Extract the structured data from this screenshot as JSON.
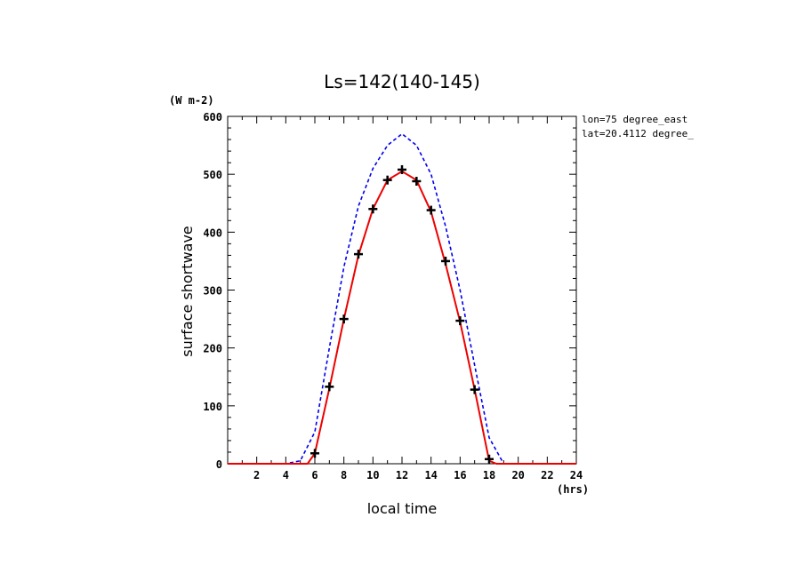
{
  "chart_data": {
    "type": "line",
    "title": "Ls=142(140-145)",
    "ylabel": "surface shortwave",
    "yunit": "(W m-2)",
    "xlabel": "local time",
    "xunit": "(hrs)",
    "annotations": [
      "lon=75 degree_east",
      "lat=20.4112 degree_"
    ],
    "xlim": [
      0,
      24
    ],
    "ylim": [
      0,
      600
    ],
    "xticks": [
      2,
      4,
      6,
      8,
      10,
      12,
      14,
      16,
      18,
      20,
      22,
      24
    ],
    "yticks": [
      0,
      100,
      200,
      300,
      400,
      500,
      600
    ],
    "grid": false,
    "series": [
      {
        "style": "dashed",
        "color": "#0000ee",
        "x": [
          0,
          1,
          2,
          3,
          4,
          5,
          6,
          7,
          8,
          9,
          10,
          11,
          12,
          13,
          14,
          15,
          16,
          17,
          18,
          19,
          20,
          21,
          22,
          23,
          24
        ],
        "y": [
          0,
          0,
          0,
          0,
          0,
          5,
          55,
          200,
          340,
          445,
          510,
          550,
          570,
          550,
          500,
          410,
          300,
          170,
          45,
          0,
          0,
          0,
          0,
          0,
          0
        ]
      },
      {
        "style": "solid",
        "color": "#ee0000",
        "x": [
          0,
          1,
          2,
          3,
          4,
          5,
          5.5,
          6,
          7,
          8,
          9,
          10,
          11,
          12,
          13,
          14,
          15,
          16,
          17,
          18,
          18.5,
          19,
          20,
          21,
          22,
          23,
          24
        ],
        "y": [
          0,
          0,
          0,
          0,
          0,
          0,
          0,
          18,
          130,
          250,
          360,
          440,
          490,
          505,
          490,
          435,
          345,
          245,
          128,
          5,
          0,
          0,
          0,
          0,
          0,
          0,
          0
        ]
      },
      {
        "style": "markers",
        "marker": "plus",
        "color": "#000000",
        "x": [
          6,
          7,
          8,
          9,
          10,
          11,
          12,
          13,
          14,
          15,
          16,
          17,
          18
        ],
        "y": [
          18,
          133,
          250,
          362,
          440,
          490,
          508,
          488,
          438,
          350,
          247,
          128,
          8
        ]
      }
    ]
  }
}
